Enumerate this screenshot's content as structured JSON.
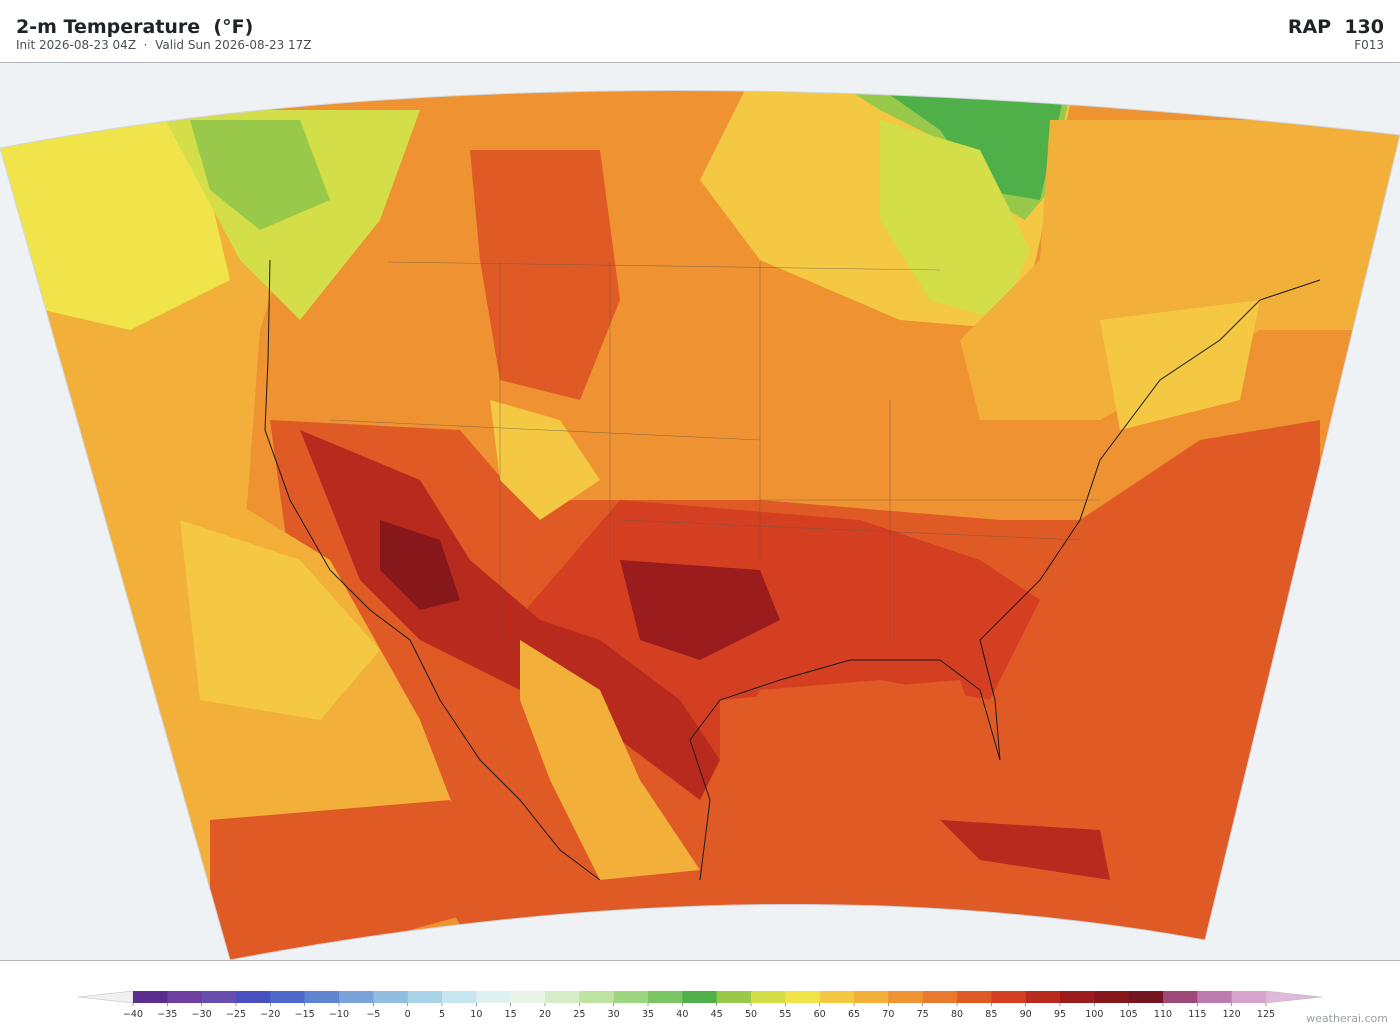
{
  "header": {
    "title": "2-m Temperature  (°F)",
    "subtitle": "Init 2026-08-23 04Z  ·  Valid Sun 2026-08-23 17Z",
    "model": "RAP  130",
    "forecast_hour": "F013"
  },
  "colorbar": {
    "ticks": [
      {
        "value": -40,
        "label": "−40"
      },
      {
        "value": -35,
        "label": "−35"
      },
      {
        "value": -30,
        "label": "−30"
      },
      {
        "value": -25,
        "label": "−25"
      },
      {
        "value": -20,
        "label": "−20"
      },
      {
        "value": -15,
        "label": "−15"
      },
      {
        "value": -10,
        "label": "−10"
      },
      {
        "value": -5,
        "label": "−5"
      },
      0,
      5,
      10,
      15,
      20,
      25,
      30,
      35,
      40,
      45,
      50,
      55,
      60,
      65,
      70,
      75,
      80,
      85,
      90,
      95,
      100,
      105,
      110,
      115,
      120,
      125
    ],
    "colors": [
      "#5a2d8e",
      "#6e3fa0",
      "#6a4db0",
      "#4a4fc0",
      "#4f68cc",
      "#5f85d0",
      "#78a2d8",
      "#8fbde0",
      "#a9d3e8",
      "#c5e5f0",
      "#dff0f0",
      "#e8f5e6",
      "#d5ecc6",
      "#bfe3a0",
      "#9cd680",
      "#79c562",
      "#4fb04a",
      "#98c94a",
      "#d3de48",
      "#f0e44a",
      "#f4c842",
      "#f2b03a",
      "#ee9232",
      "#e87a2e",
      "#e05a26",
      "#d43f22",
      "#b82a1e",
      "#9a1c1c",
      "#86181c",
      "#751520",
      "#9c4878",
      "#bd7aae",
      "#d6a4cc"
    ],
    "under_color": "#f0f0f0",
    "over_color": "#e0b8dc"
  },
  "watermark": "weatherai.com"
}
